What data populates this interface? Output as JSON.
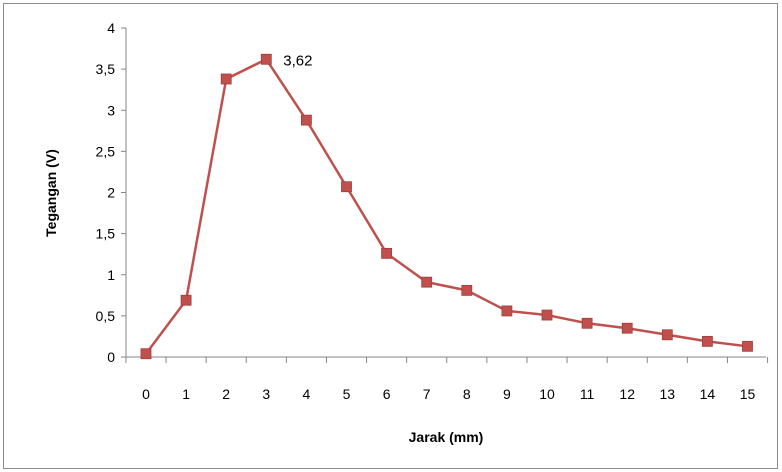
{
  "chart_data": {
    "type": "line",
    "title": "",
    "xlabel": "Jarak (mm)",
    "ylabel": "Tegangan (V)",
    "x": [
      "0",
      "1",
      "2",
      "3",
      "4",
      "5",
      "6",
      "7",
      "8",
      "9",
      "10",
      "11",
      "12",
      "13",
      "14",
      "15"
    ],
    "y_ticks": [
      "0",
      "0,5",
      "1",
      "1,5",
      "2",
      "2,5",
      "3",
      "3,5",
      "4"
    ],
    "ylim": [
      0,
      4
    ],
    "series": [
      {
        "values": [
          0.04,
          0.69,
          3.38,
          3.62,
          2.88,
          2.07,
          1.26,
          0.91,
          0.81,
          0.56,
          0.51,
          0.41,
          0.35,
          0.27,
          0.19,
          0.13
        ],
        "color": "#c0504d",
        "marker": "square"
      }
    ],
    "data_labels": [
      {
        "index": 3,
        "text": "3,62"
      }
    ],
    "legend": "none",
    "gridlines": false
  }
}
